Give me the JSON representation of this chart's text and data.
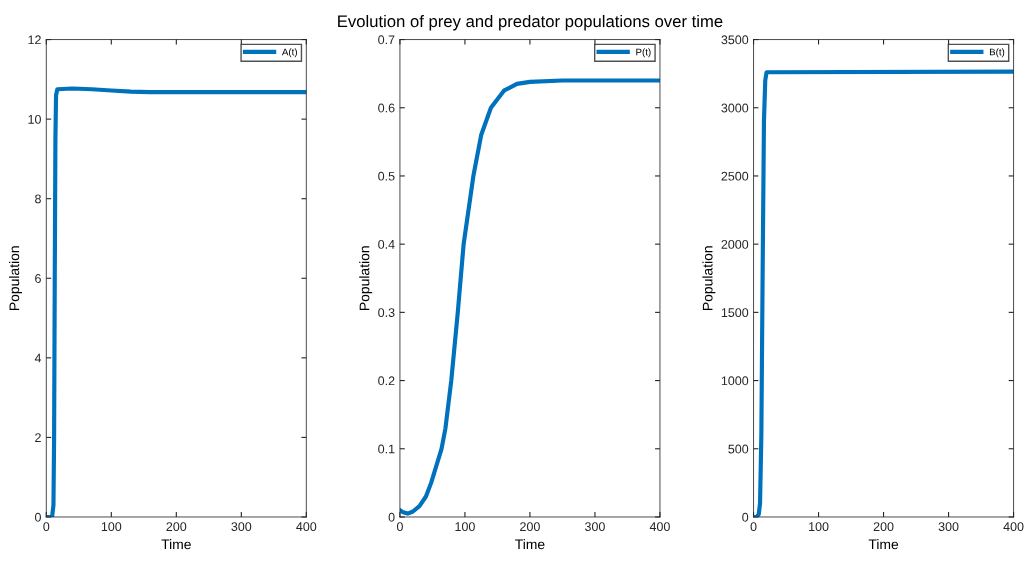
{
  "chart_data": [
    {
      "type": "line",
      "xlabel": "Time",
      "ylabel": "Population",
      "xlim": [
        0,
        400
      ],
      "xticks": [
        0,
        100,
        200,
        300,
        400
      ],
      "ylim": [
        0,
        12
      ],
      "yticks": [
        0,
        2,
        4,
        6,
        8,
        10,
        12
      ],
      "legend": "top right",
      "grid": false,
      "series": [
        {
          "name": "A(t)",
          "color": "#0072bd",
          "x": [
            0,
            5,
            9,
            11,
            12,
            13,
            14,
            15,
            17,
            40,
            70,
            100,
            130,
            160,
            400
          ],
          "values": [
            0,
            0,
            0.02,
            0.3,
            2,
            6,
            9.5,
            10.6,
            10.75,
            10.77,
            10.75,
            10.72,
            10.69,
            10.68,
            10.68
          ]
        }
      ]
    },
    {
      "type": "line",
      "title": "Evolution of prey and predator populations over time",
      "xlabel": "Time",
      "ylabel": "Population",
      "xlim": [
        0,
        400
      ],
      "xticks": [
        0,
        100,
        200,
        300,
        400
      ],
      "ylim": [
        0,
        0.7
      ],
      "yticks": [
        0,
        0.1,
        0.2,
        0.3,
        0.4,
        0.5,
        0.6,
        0.7
      ],
      "legend": "top right",
      "grid": false,
      "series": [
        {
          "name": "P(t)",
          "color": "#0072bd",
          "x": [
            0,
            5,
            12,
            20,
            30,
            40,
            48,
            56,
            64,
            70,
            79,
            89,
            98,
            113,
            125,
            140,
            160,
            180,
            200,
            250,
            400
          ],
          "values": [
            0.01,
            0.007,
            0.005,
            0.008,
            0.016,
            0.03,
            0.05,
            0.075,
            0.1,
            0.13,
            0.2,
            0.3,
            0.4,
            0.5,
            0.56,
            0.6,
            0.625,
            0.635,
            0.638,
            0.64,
            0.64
          ]
        }
      ]
    },
    {
      "type": "line",
      "xlabel": "Time",
      "ylabel": "Population",
      "xlim": [
        0,
        400
      ],
      "xticks": [
        0,
        100,
        200,
        300,
        400
      ],
      "ylim": [
        0,
        3500
      ],
      "yticks": [
        0,
        500,
        1000,
        1500,
        2000,
        2500,
        3000,
        3500
      ],
      "legend": "top right",
      "grid": false,
      "series": [
        {
          "name": "B(t)",
          "color": "#0072bd",
          "x": [
            0,
            5,
            8,
            10,
            12,
            14,
            16,
            18,
            20,
            400
          ],
          "values": [
            0,
            0,
            20,
            100,
            600,
            1800,
            2900,
            3200,
            3260,
            3265
          ]
        }
      ]
    }
  ]
}
